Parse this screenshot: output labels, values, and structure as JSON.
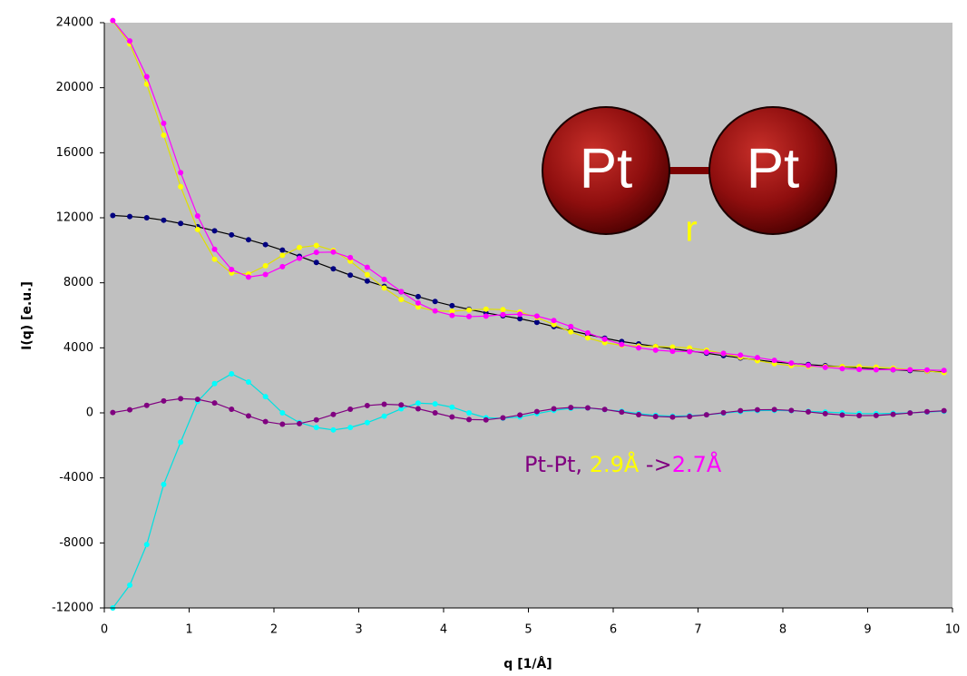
{
  "chart_data": {
    "type": "line",
    "xlabel": "q [1/Å]",
    "ylabel": "I(q) [e.u.]",
    "xlim": [
      0,
      10
    ],
    "ylim": [
      -12000,
      24000
    ],
    "xticks": [
      0,
      1,
      2,
      3,
      4,
      5,
      6,
      7,
      8,
      9,
      10
    ],
    "yticks": [
      -12000,
      -8000,
      -4000,
      0,
      4000,
      8000,
      12000,
      16000,
      20000,
      24000
    ],
    "background": "#c0c0c0",
    "x": [
      0.1,
      0.3,
      0.5,
      0.7,
      0.9,
      1.1,
      1.3,
      1.5,
      1.7,
      1.9,
      2.1,
      2.3,
      2.5,
      2.7,
      2.9,
      3.1,
      3.3,
      3.5,
      3.7,
      3.9,
      4.1,
      4.3,
      4.5,
      4.7,
      4.9,
      5.1,
      5.3,
      5.5,
      5.7,
      5.9,
      6.1,
      6.3,
      6.5,
      6.7,
      6.9,
      7.1,
      7.3,
      7.5,
      7.7,
      7.9,
      8.1,
      8.3,
      8.5,
      8.7,
      8.9,
      9.1,
      9.3,
      9.5,
      9.7,
      9.9
    ],
    "series": [
      {
        "color": "#000080",
        "line_color": "#000000",
        "values": [
          12140,
          12080,
          12000,
          11850,
          11650,
          11450,
          11200,
          10950,
          10650,
          10350,
          10010,
          9630,
          9250,
          8860,
          8470,
          8110,
          7780,
          7450,
          7150,
          6850,
          6590,
          6370,
          6150,
          5970,
          5790,
          5570,
          5310,
          5050,
          4820,
          4590,
          4390,
          4240,
          4080,
          3940,
          3810,
          3670,
          3520,
          3380,
          3250,
          3130,
          3040,
          2970,
          2900,
          2840,
          2770,
          2710,
          2660,
          2600,
          2560,
          2520
        ]
      },
      {
        "color": "#ffff00",
        "line_color": "#e0e000",
        "values": [
          24110,
          22690,
          20220,
          17080,
          13910,
          11280,
          9450,
          8600,
          8540,
          9050,
          9690,
          10170,
          10300,
          9990,
          9330,
          8500,
          7680,
          6970,
          6510,
          6270,
          6250,
          6330,
          6380,
          6350,
          6200,
          5870,
          5430,
          4980,
          4610,
          4320,
          4160,
          4110,
          4080,
          4050,
          3990,
          3850,
          3650,
          3420,
          3210,
          3030,
          2910,
          2860,
          2850,
          2850,
          2840,
          2810,
          2750,
          2660,
          2570,
          2480
        ]
      },
      {
        "color": "#ff00ff",
        "line_color": "#ff00ff",
        "values": [
          24130,
          22880,
          20680,
          17810,
          14780,
          12110,
          10060,
          8820,
          8350,
          8510,
          8990,
          9510,
          9870,
          9890,
          9550,
          8950,
          8210,
          7460,
          6760,
          6270,
          5996,
          5920,
          5950,
          6040,
          6070,
          5950,
          5680,
          5310,
          4920,
          4530,
          4210,
          4000,
          3860,
          3790,
          3770,
          3730,
          3660,
          3550,
          3400,
          3230,
          3060,
          2920,
          2800,
          2720,
          2670,
          2650,
          2660,
          2650,
          2640,
          2610
        ]
      },
      {
        "color": "#00ffff",
        "line_color": "#00e0e0",
        "values": [
          -12000,
          -10600,
          -8100,
          -4400,
          -1800,
          700,
          1800,
          2400,
          1900,
          1000,
          0,
          -600,
          -900,
          -1050,
          -900,
          -600,
          -200,
          250,
          600,
          550,
          350,
          0,
          -300,
          -330,
          -250,
          -50,
          150,
          280,
          300,
          200,
          100,
          -50,
          -150,
          -200,
          -180,
          -120,
          -20,
          80,
          140,
          150,
          130,
          90,
          50,
          0,
          -40,
          -50,
          -30,
          0,
          50,
          100
        ]
      },
      {
        "color": "#800080",
        "line_color": "#800080",
        "values": [
          20,
          190,
          460,
          730,
          870,
          830,
          610,
          220,
          -190,
          -540,
          -700,
          -660,
          -430,
          -100,
          220,
          450,
          530,
          490,
          250,
          0,
          -250,
          -410,
          -430,
          -310,
          -130,
          80,
          250,
          330,
          310,
          210,
          50,
          -110,
          -220,
          -260,
          -220,
          -120,
          10,
          130,
          190,
          200,
          150,
          60,
          -50,
          -130,
          -170,
          -160,
          -90,
          -10,
          70,
          130
        ]
      }
    ],
    "inset": {
      "atom_left": "Pt",
      "atom_right": "Pt",
      "bond_label": "r"
    },
    "annotation": [
      "Pt-Pt, ",
      "2.9Å",
      " ->",
      "2.7Å"
    ]
  }
}
